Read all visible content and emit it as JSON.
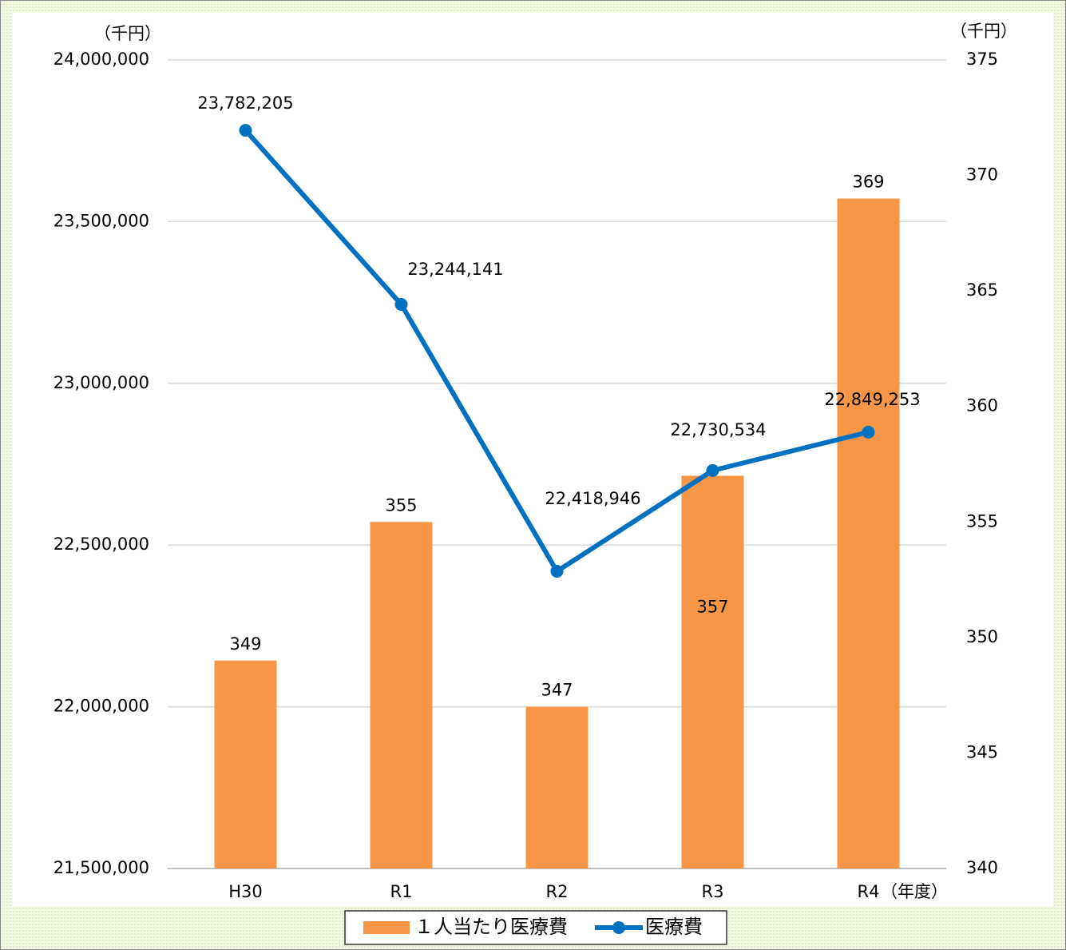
{
  "chart_data": {
    "type": "combo",
    "ylabel": "（千円）",
    "y2label": "（千円）",
    "xlabel": "（年度）",
    "categories": [
      "H30",
      "R1",
      "R2",
      "R3",
      "R4"
    ],
    "series": [
      {
        "name": "１人当たり医療費",
        "type": "bar",
        "axis": "y2",
        "color": "#f79646",
        "values": [
          349,
          355,
          347,
          357,
          369
        ]
      },
      {
        "name": "医療費",
        "type": "line",
        "color": "#0070c0",
        "values": [
          23782205,
          23244141,
          22418946,
          22730534,
          22849253
        ],
        "value_labels": [
          "23,782,205",
          "23,244,141",
          "22,418,946",
          "22,730,534",
          "22,849,253"
        ]
      }
    ],
    "ylim": [
      21500000,
      24000000
    ],
    "yticks": [
      {
        "value": 21500000,
        "label": "21,500,000"
      },
      {
        "value": 22000000,
        "label": "22,000,000"
      },
      {
        "value": 22500000,
        "label": "22,500,000"
      },
      {
        "value": 23000000,
        "label": "23,000,000"
      },
      {
        "value": 23500000,
        "label": "23,500,000"
      },
      {
        "value": 24000000,
        "label": "24,000,000"
      }
    ],
    "y2lim": [
      340,
      375
    ],
    "y2ticks": [
      340,
      345,
      350,
      355,
      360,
      365,
      370,
      375
    ],
    "grid": true,
    "legend": "bottom"
  }
}
